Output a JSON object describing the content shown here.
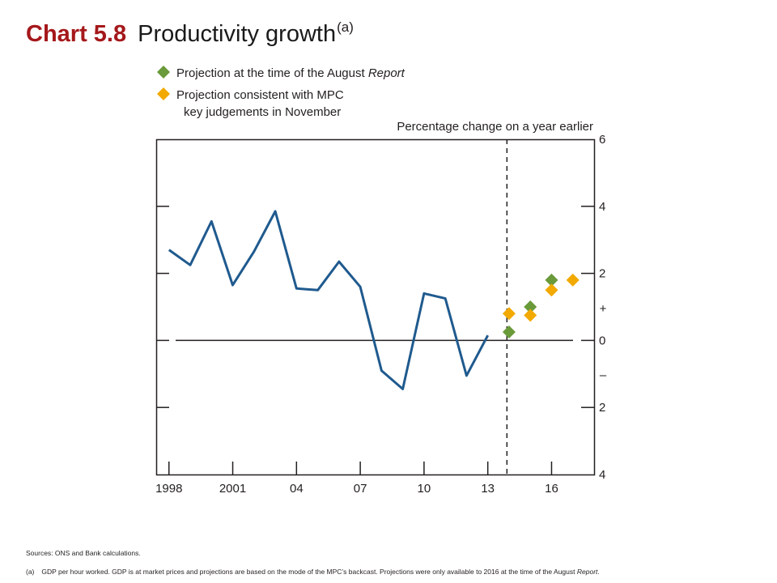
{
  "header": {
    "chart_number": "Chart 5.8",
    "title": "Productivity growth",
    "title_note": "(a)"
  },
  "sources": "Sources: ONS and Bank calculations.",
  "footnote": {
    "marker": "(a)",
    "text": "GDP per hour worked. GDP is at market prices and projections are based on the mode of the MPC’s backcast. Projections were only available to 2016 at the time of the August",
    "text_italic": "Report",
    "text_end": "."
  },
  "colors": {
    "line": "#1f5a8e",
    "august": "#6a9a3a",
    "november": "#f2a900",
    "axis": "#231f20",
    "title_red": "#a5181b"
  },
  "chart_data": {
    "type": "line",
    "title": "Productivity growth",
    "ylabel": "Percentage change on a year earlier",
    "ylim": [
      -4,
      6
    ],
    "xlim": [
      1997.4,
      2018.0
    ],
    "y_ticks": [
      {
        "value": 6,
        "label": "6"
      },
      {
        "value": 4,
        "label": "4"
      },
      {
        "value": 2,
        "label": "2"
      },
      {
        "value": 0,
        "label": "0"
      },
      {
        "value": -2,
        "label": "2"
      },
      {
        "value": -4,
        "label": "4"
      }
    ],
    "sign_labels": {
      "plus": "+",
      "minus": "–"
    },
    "x_ticks": [
      {
        "value": 1998,
        "label": "1998"
      },
      {
        "value": 2001,
        "label": "2001"
      },
      {
        "value": 2004,
        "label": "04"
      },
      {
        "value": 2007,
        "label": "07"
      },
      {
        "value": 2010,
        "label": "10"
      },
      {
        "value": 2013,
        "label": "13"
      },
      {
        "value": 2016,
        "label": "16"
      }
    ],
    "projection_start": 2013.9,
    "grid": false,
    "legend_position": "top-left",
    "series": [
      {
        "kind": "line",
        "color": "#1f5a8e",
        "x": [
          1998,
          1999,
          2000,
          2001,
          2002,
          2003,
          2004,
          2005,
          2006,
          2007,
          2008,
          2009,
          2010,
          2011,
          2012,
          2013
        ],
        "values": [
          2.7,
          2.25,
          3.55,
          1.65,
          2.65,
          3.85,
          1.55,
          1.5,
          2.35,
          1.6,
          -0.9,
          -1.45,
          1.4,
          1.25,
          -1.05,
          0.15
        ]
      },
      {
        "kind": "scatter",
        "name": "Projection at the time of the August",
        "name_italic": "Report",
        "color": "#6a9a3a",
        "x": [
          2014,
          2015,
          2016
        ],
        "values": [
          0.25,
          1.0,
          1.8
        ]
      },
      {
        "kind": "scatter",
        "name": "Projection consistent with MPC",
        "name_line2": "key judgements in November",
        "color": "#f2a900",
        "x": [
          2014,
          2015,
          2016,
          2017
        ],
        "values": [
          0.8,
          0.75,
          1.5,
          1.8
        ]
      }
    ]
  }
}
